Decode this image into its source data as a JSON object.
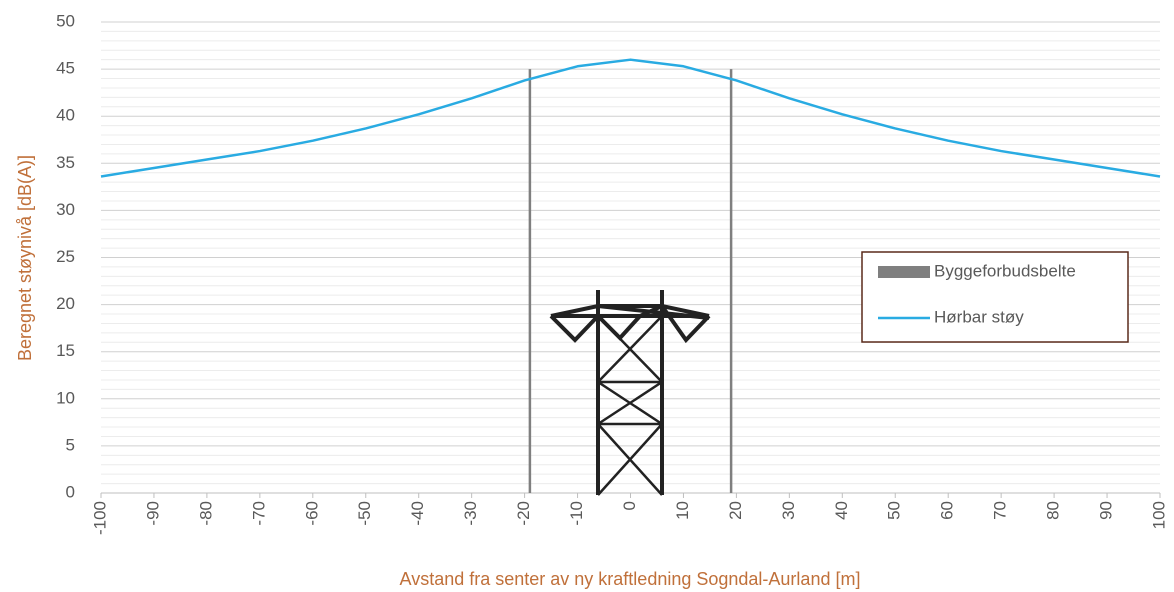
{
  "chart_data": {
    "type": "line",
    "xlabel": "Avstand fra senter av ny kraftledning Sogndal-Aurland [m]",
    "ylabel": "Beregnet støynivå [dB(A)]",
    "xlim": [
      -100,
      100
    ],
    "xticks": [
      -100,
      -90,
      -80,
      -70,
      -60,
      -50,
      -40,
      -30,
      -20,
      -10,
      0,
      10,
      20,
      30,
      40,
      50,
      60,
      70,
      80,
      90,
      100
    ],
    "ylim": [
      0,
      50
    ],
    "yticks": [
      0,
      5,
      10,
      15,
      20,
      25,
      30,
      35,
      40,
      45,
      50
    ],
    "grid": true,
    "legend": "right",
    "series": [
      {
        "name": "Byggeforbudsbelte",
        "color": "#7f7f7f",
        "kind": "vline",
        "x": [
          -19,
          19
        ],
        "values": [
          45,
          45
        ]
      },
      {
        "name": "Hørbar støy",
        "color": "#29abe2",
        "kind": "line",
        "x": [
          -100,
          -90,
          -80,
          -70,
          -60,
          -50,
          -40,
          -30,
          -20,
          -10,
          0,
          10,
          20,
          30,
          40,
          50,
          60,
          70,
          80,
          90,
          100
        ],
        "values": [
          33.6,
          34.5,
          35.4,
          36.3,
          37.4,
          38.7,
          40.2,
          41.9,
          43.8,
          45.3,
          46,
          45.3,
          43.8,
          41.9,
          40.2,
          38.7,
          37.4,
          36.3,
          35.4,
          34.5,
          33.6
        ]
      }
    ]
  }
}
